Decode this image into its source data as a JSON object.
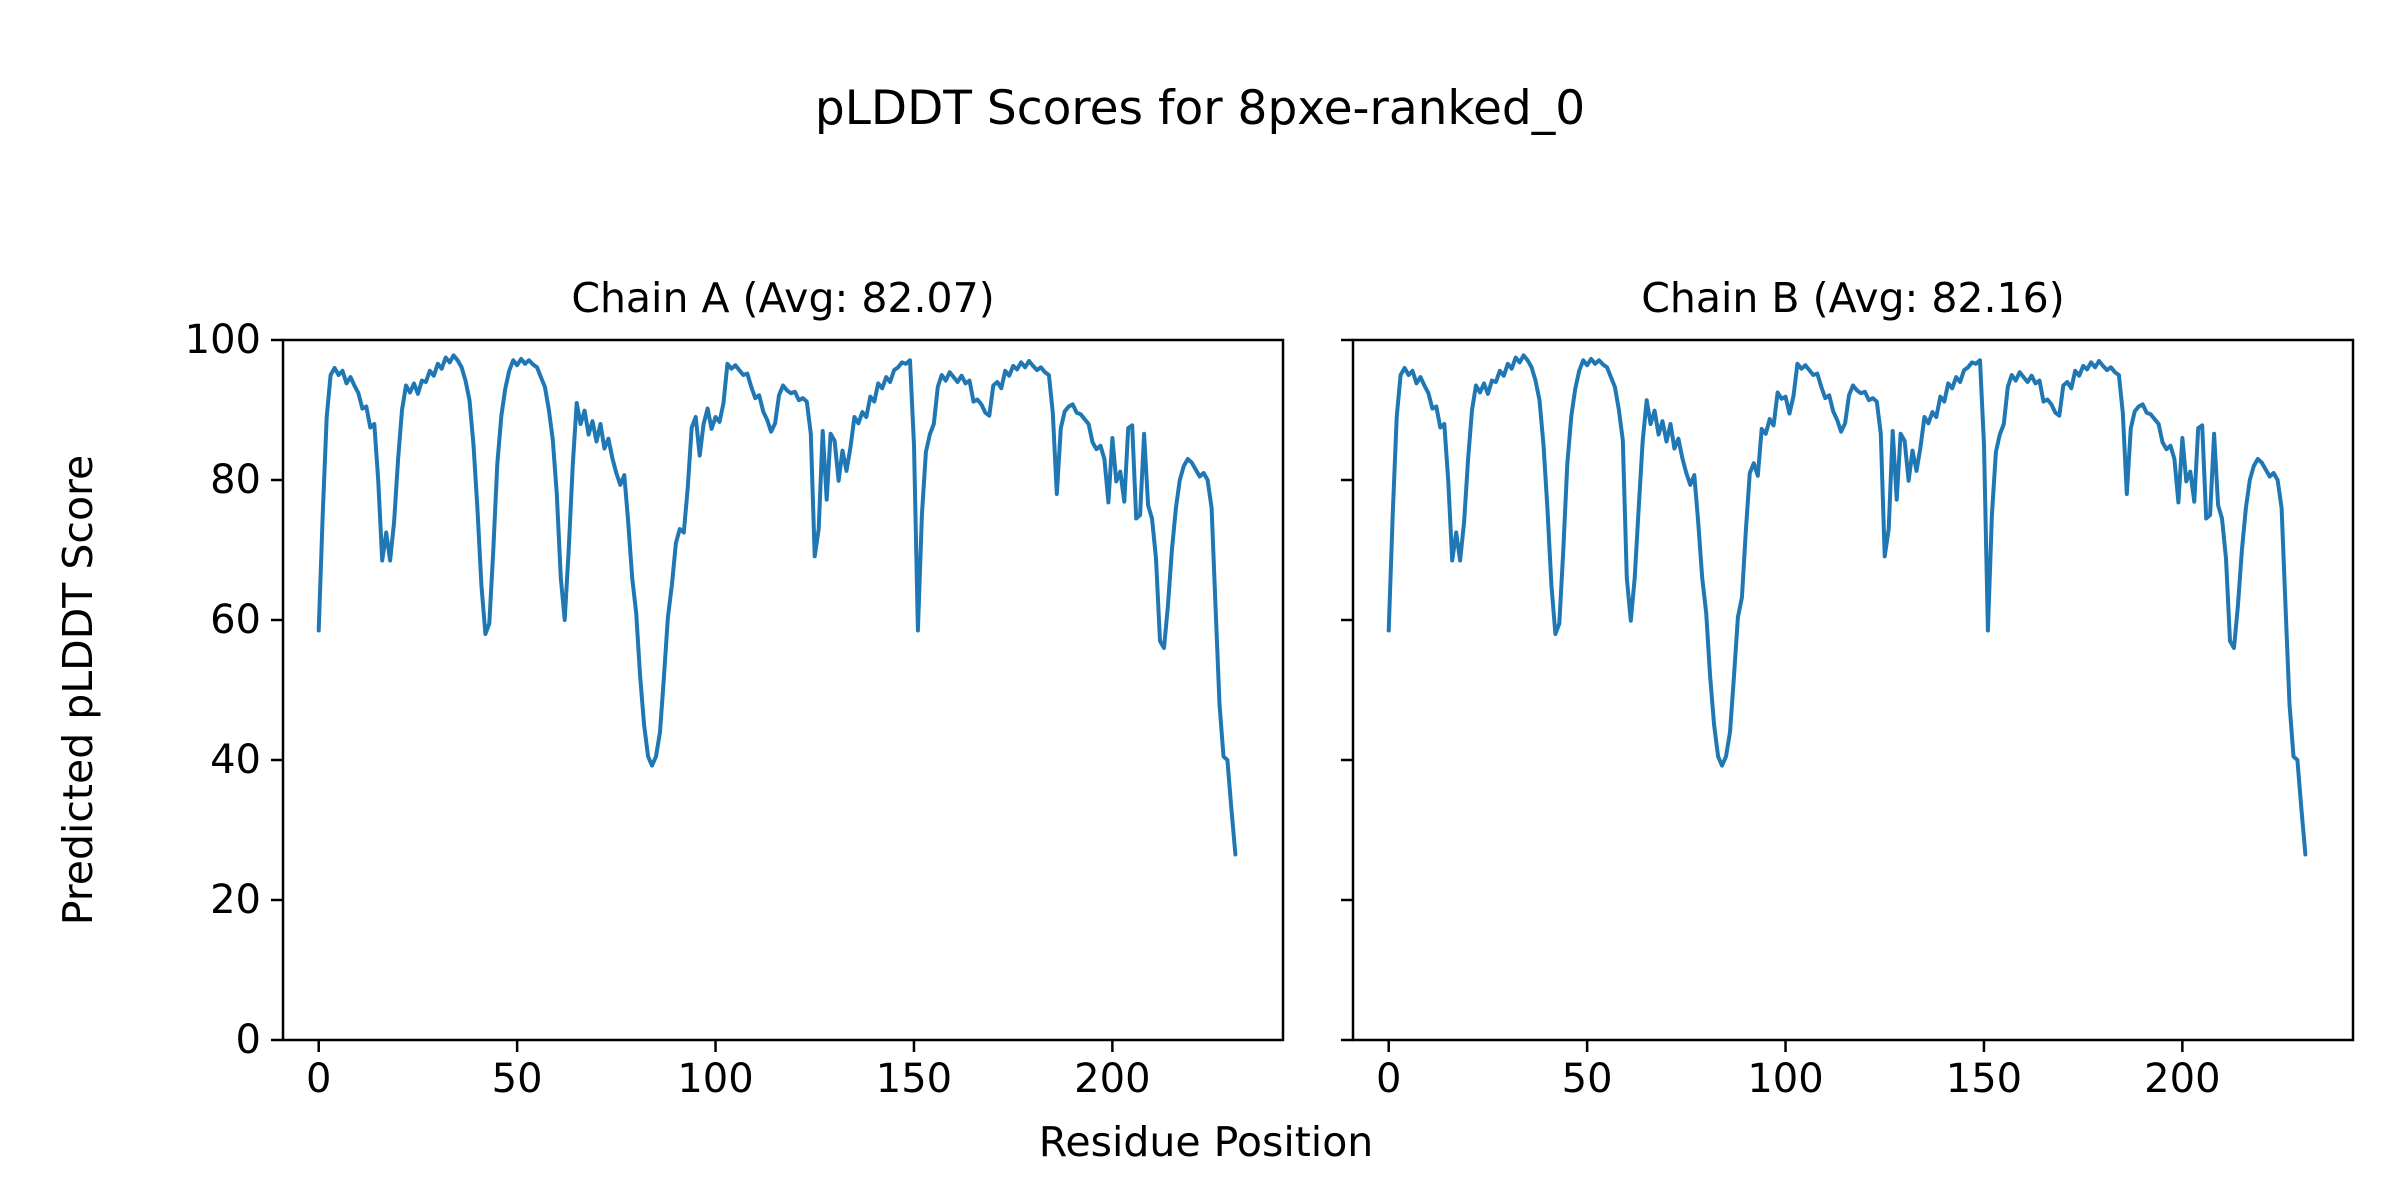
{
  "figure": {
    "title": "pLDDT Scores for 8pxe-ranked_0",
    "xlabel": "Residue Position",
    "ylabel": "Predicted pLDDT Score",
    "background_color": "#ffffff",
    "text_color": "#000000",
    "spine_color": "#000000"
  },
  "chart_data": [
    {
      "type": "line",
      "title": "Chain A (Avg: 82.07)",
      "chain": "A",
      "average": 82.07,
      "xlabel": "Residue Position",
      "ylabel": "Predicted pLDDT Score",
      "xlim": [
        -9,
        243
      ],
      "ylim": [
        0,
        100
      ],
      "xticks": [
        0,
        50,
        100,
        150,
        200
      ],
      "yticks": [
        0,
        20,
        40,
        60,
        80,
        100
      ],
      "show_ytick_labels": true,
      "grid": false,
      "legend": "none",
      "line_color": "#1f77b4",
      "x_start": 0,
      "x_step": 1,
      "values": [
        58.5,
        75,
        89,
        95,
        96,
        95,
        95.6,
        93.8,
        94.7,
        93.5,
        92.4,
        90.2,
        90.5,
        87.5,
        88,
        80,
        68.5,
        72.5,
        68.5,
        74,
        83,
        90,
        93.5,
        92.5,
        93.8,
        92.3,
        94.2,
        94,
        95.6,
        94.9,
        96.6,
        95.9,
        97.5,
        96.8,
        97.8,
        97.1,
        96.1,
        94.2,
        91.4,
        85,
        76,
        65,
        58,
        59.5,
        70,
        82.3,
        89.1,
        93,
        95.6,
        97.1,
        96.4,
        97.3,
        96.6,
        97.1,
        96.5,
        96.1,
        94.7,
        93.3,
        90,
        85.7,
        78,
        66,
        60,
        70,
        82,
        91,
        88,
        89.9,
        86.5,
        88.4,
        85.5,
        88,
        84.5,
        85.9,
        83.1,
        81,
        79.3,
        80.7,
        74,
        66,
        61,
        52,
        45,
        40.5,
        39.2,
        40.5,
        44,
        52,
        60.4,
        65,
        71,
        73,
        72.5,
        79,
        87.5,
        89,
        83.5,
        88,
        90.2,
        87.3,
        89,
        88.3,
        91,
        96.6,
        95.9,
        96.4,
        95.7,
        95,
        95.2,
        93.3,
        91.7,
        92.1,
        89.8,
        88.6,
        86.9,
        88.1,
        92.1,
        93.5,
        92.8,
        92.4,
        92.6,
        91.4,
        91.7,
        91.2,
        86.6,
        69.1,
        73,
        87,
        77.2,
        86.6,
        85.6,
        79.9,
        84.2,
        81.3,
        84.7,
        89,
        88.1,
        89.7,
        89,
        91.9,
        91.2,
        93.8,
        93.1,
        94.7,
        94,
        95.7,
        96.1,
        96.8,
        96.6,
        97.1,
        85,
        58.5,
        75,
        84,
        86.5,
        88,
        93.3,
        95,
        94.2,
        95.4,
        94.7,
        94,
        94.9,
        93.8,
        94.2,
        91.2,
        91.5,
        90.8,
        89.6,
        89.2,
        93.5,
        94,
        93.1,
        95.6,
        94.9,
        96.3,
        95.8,
        96.8,
        96.1,
        97,
        96.3,
        95.7,
        96.1,
        95.4,
        95,
        89.6,
        78,
        87.4,
        89.8,
        90.5,
        90.8,
        89.6,
        89.4,
        88.7,
        88,
        85.4,
        84.4,
        84.9,
        83,
        76.8,
        86,
        79.8,
        81.2,
        76.9,
        87.4,
        87.8,
        74.5,
        75,
        86.6,
        76.4,
        74.5,
        68.8,
        57,
        56,
        62,
        70,
        76,
        80,
        82,
        83,
        82.5,
        81.5,
        80.5,
        81,
        80,
        76,
        62,
        48,
        40.5,
        40,
        33,
        26.5
      ]
    },
    {
      "type": "line",
      "title": "Chain B (Avg: 82.16)",
      "chain": "B",
      "average": 82.16,
      "xlabel": "Residue Position",
      "ylabel": "Predicted pLDDT Score",
      "xlim": [
        -9,
        243
      ],
      "ylim": [
        0,
        100
      ],
      "xticks": [
        0,
        50,
        100,
        150,
        200
      ],
      "yticks": [
        0,
        20,
        40,
        60,
        80,
        100
      ],
      "show_ytick_labels": false,
      "grid": false,
      "legend": "none",
      "line_color": "#1f77b4",
      "x_start": 0,
      "x_step": 1,
      "values": [
        58.5,
        75,
        89,
        95,
        96,
        95,
        95.6,
        93.8,
        94.7,
        93.5,
        92.4,
        90.2,
        90.5,
        87.5,
        88,
        80,
        68.5,
        72.5,
        68.5,
        74,
        83,
        90,
        93.5,
        92.5,
        93.8,
        92.3,
        94.2,
        94,
        95.6,
        94.9,
        96.6,
        95.9,
        97.5,
        96.8,
        97.8,
        97.1,
        96.1,
        94.2,
        91.4,
        85,
        76,
        65,
        58,
        59.5,
        70,
        82.3,
        89.1,
        93,
        95.6,
        97.1,
        96.4,
        97.3,
        96.6,
        97.1,
        96.5,
        96.1,
        94.7,
        93.3,
        90,
        85.7,
        66,
        59.9,
        66,
        76,
        85.6,
        91.4,
        88,
        89.9,
        86.5,
        88.4,
        85.5,
        88,
        84.5,
        85.9,
        83.1,
        81,
        79.3,
        80.7,
        74,
        66,
        61,
        52,
        45,
        40.5,
        39.2,
        40.5,
        44,
        52,
        60.4,
        63.2,
        72.9,
        81,
        82.4,
        80.6,
        87.3,
        86.6,
        88.7,
        87.8,
        92.5,
        91.6,
        91.9,
        89.5,
        92,
        96.6,
        95.9,
        96.4,
        95.7,
        95,
        95.2,
        93.3,
        91.7,
        92.1,
        89.8,
        88.6,
        86.9,
        88.1,
        92.1,
        93.5,
        92.8,
        92.4,
        92.6,
        91.4,
        91.7,
        91.2,
        86.6,
        69.1,
        73,
        87,
        77.2,
        86.6,
        85.6,
        79.9,
        84.2,
        81.3,
        84.7,
        89,
        88.1,
        89.7,
        89,
        91.9,
        91.2,
        93.8,
        93.1,
        94.7,
        94,
        95.7,
        96.1,
        96.8,
        96.6,
        97.1,
        85,
        58.5,
        75,
        84,
        86.5,
        88,
        93.3,
        95,
        94.2,
        95.4,
        94.7,
        94,
        94.9,
        93.8,
        94.2,
        91.2,
        91.5,
        90.8,
        89.6,
        89.2,
        93.5,
        94,
        93.1,
        95.6,
        94.9,
        96.3,
        95.8,
        96.8,
        96.1,
        97,
        96.3,
        95.7,
        96.1,
        95.4,
        95,
        89.6,
        78,
        87.4,
        89.8,
        90.5,
        90.8,
        89.6,
        89.4,
        88.7,
        88,
        85.4,
        84.4,
        84.9,
        83,
        76.8,
        86,
        79.8,
        81.2,
        76.9,
        87.4,
        87.8,
        74.5,
        75,
        86.6,
        76.4,
        74.5,
        68.8,
        57,
        56,
        62,
        70,
        76,
        80,
        82,
        83,
        82.5,
        81.5,
        80.5,
        81,
        80,
        76,
        62,
        48,
        40.5,
        40,
        33,
        26.5
      ]
    }
  ],
  "style": {
    "line_width": 4,
    "spine_width": 2.5,
    "tick_length": 12,
    "tick_width": 2.5
  }
}
